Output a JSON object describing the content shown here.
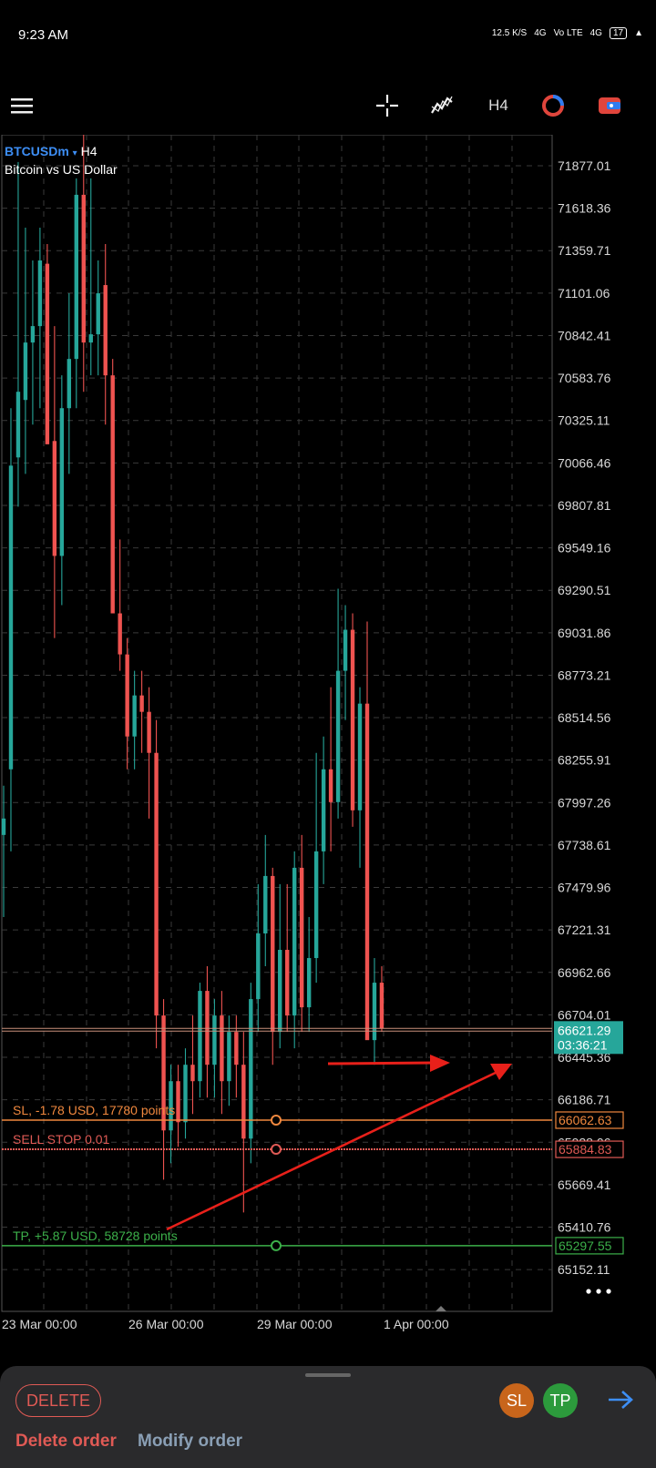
{
  "status": {
    "time": "9:23 AM",
    "speed": "12.5 K/S",
    "net1": "4G",
    "net2": "Vo LTE",
    "net3": "4G",
    "battery": "17"
  },
  "toolbar": {
    "menu_icon": "hamburger-icon",
    "crosshair_icon": "crosshair-icon",
    "indicators_icon": "indicators-icon",
    "timeframe": "H4",
    "objects_icon": "chart-objects-icon",
    "trade_icon": "trade-icon"
  },
  "chart": {
    "symbol": "BTCUSDm",
    "symbol_caret": "▾",
    "timeframe": "H4",
    "description": "Bitcoin vs US Dollar",
    "price_labels": [
      "71877.01",
      "71618.36",
      "71359.71",
      "71101.06",
      "70842.41",
      "70583.76",
      "70325.11",
      "70066.46",
      "69807.81",
      "69549.16",
      "69290.51",
      "69031.86",
      "68773.21",
      "68514.56",
      "68255.91",
      "67997.26",
      "67738.61",
      "67479.96",
      "67221.31",
      "66962.66",
      "66704.01",
      "66445.36",
      "66186.71",
      "65928.06",
      "65669.41",
      "65410.76",
      "65152.11"
    ],
    "x_labels": [
      "23 Mar 00:00",
      "26 Mar 00:00",
      "29 Mar 00:00",
      "1 Apr 00:00"
    ],
    "current_price": "66621.29",
    "countdown": "03:36:21",
    "sl_text": "SL, -1.78 USD, 17780 points",
    "sl_price": "66062.63",
    "order_text": "SELL STOP 0.01",
    "order_price": "65884.83",
    "tp_text": "TP, +5.87 USD, 58728 points",
    "tp_price": "65297.55",
    "more_icon": "more-dots-icon",
    "colors": {
      "bull": "#26a69a",
      "bear": "#ef5350",
      "sl": "#f0883e",
      "order": "#e05a55",
      "tp": "#3cb04a",
      "arrows": "#e8201a",
      "grid": "#3a3a3a"
    }
  },
  "bottom": {
    "delete_pill": "DELETE",
    "sl_button": "SL",
    "tp_button": "TP",
    "next_icon": "arrow-right-icon",
    "delete_order": "Delete order",
    "modify_order": "Modify order"
  }
}
